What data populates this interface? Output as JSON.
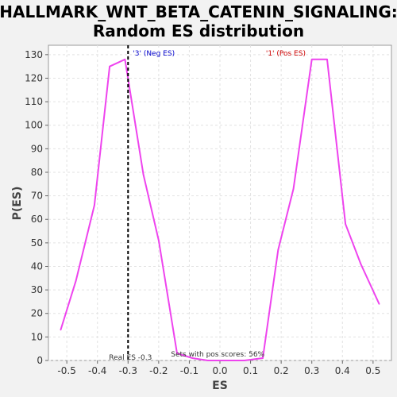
{
  "chart_data": {
    "type": "line",
    "title_line1": "HALLMARK_WNT_BETA_CATENIN_SIGNALING:",
    "title_line2": "Random ES distribution",
    "xlabel": "ES",
    "ylabel": "P(ES)",
    "xlim": [
      -0.56,
      0.56
    ],
    "ylim": [
      0,
      134
    ],
    "x_ticks": [
      -0.5,
      -0.4,
      -0.3,
      -0.2,
      -0.1,
      0.0,
      0.1,
      0.2,
      0.3,
      0.4,
      0.5
    ],
    "x_tick_labels": [
      "-0.5",
      "-0.4",
      "-0.3",
      "-0.2",
      "-0.1",
      "0.0",
      "0.1",
      "0.2",
      "0.3",
      "0.4",
      "0.5"
    ],
    "y_ticks": [
      0,
      10,
      20,
      30,
      40,
      50,
      60,
      70,
      80,
      90,
      100,
      110,
      120,
      130
    ],
    "y_tick_labels": [
      "0",
      "10",
      "20",
      "30",
      "40",
      "50",
      "60",
      "70",
      "80",
      "90",
      "100",
      "110",
      "120",
      "130"
    ],
    "grid": true,
    "series": [
      {
        "color": "#ee44ee",
        "x": [
          -0.52,
          -0.47,
          -0.41,
          -0.36,
          -0.31,
          -0.25,
          -0.2,
          -0.14,
          -0.09,
          -0.04,
          0.02,
          0.08,
          0.14,
          0.19,
          0.24,
          0.3,
          0.35,
          0.41,
          0.46,
          0.52
        ],
        "y": [
          13,
          34,
          66,
          125,
          128,
          79,
          51,
          3,
          1,
          0,
          0,
          0,
          1,
          47,
          73,
          128,
          128,
          58,
          41,
          24
        ]
      }
    ],
    "real_es": -0.3,
    "real_es_label": "Real ES -0.3",
    "neg_label": "'3' (Neg ES)",
    "pos_label": "'1' (Pos ES)",
    "pos_scores_note": "Sets with pos scores: 56%",
    "colors": {
      "neg": "#0000cc",
      "pos": "#cc0000",
      "line": "#ee44ee"
    }
  }
}
